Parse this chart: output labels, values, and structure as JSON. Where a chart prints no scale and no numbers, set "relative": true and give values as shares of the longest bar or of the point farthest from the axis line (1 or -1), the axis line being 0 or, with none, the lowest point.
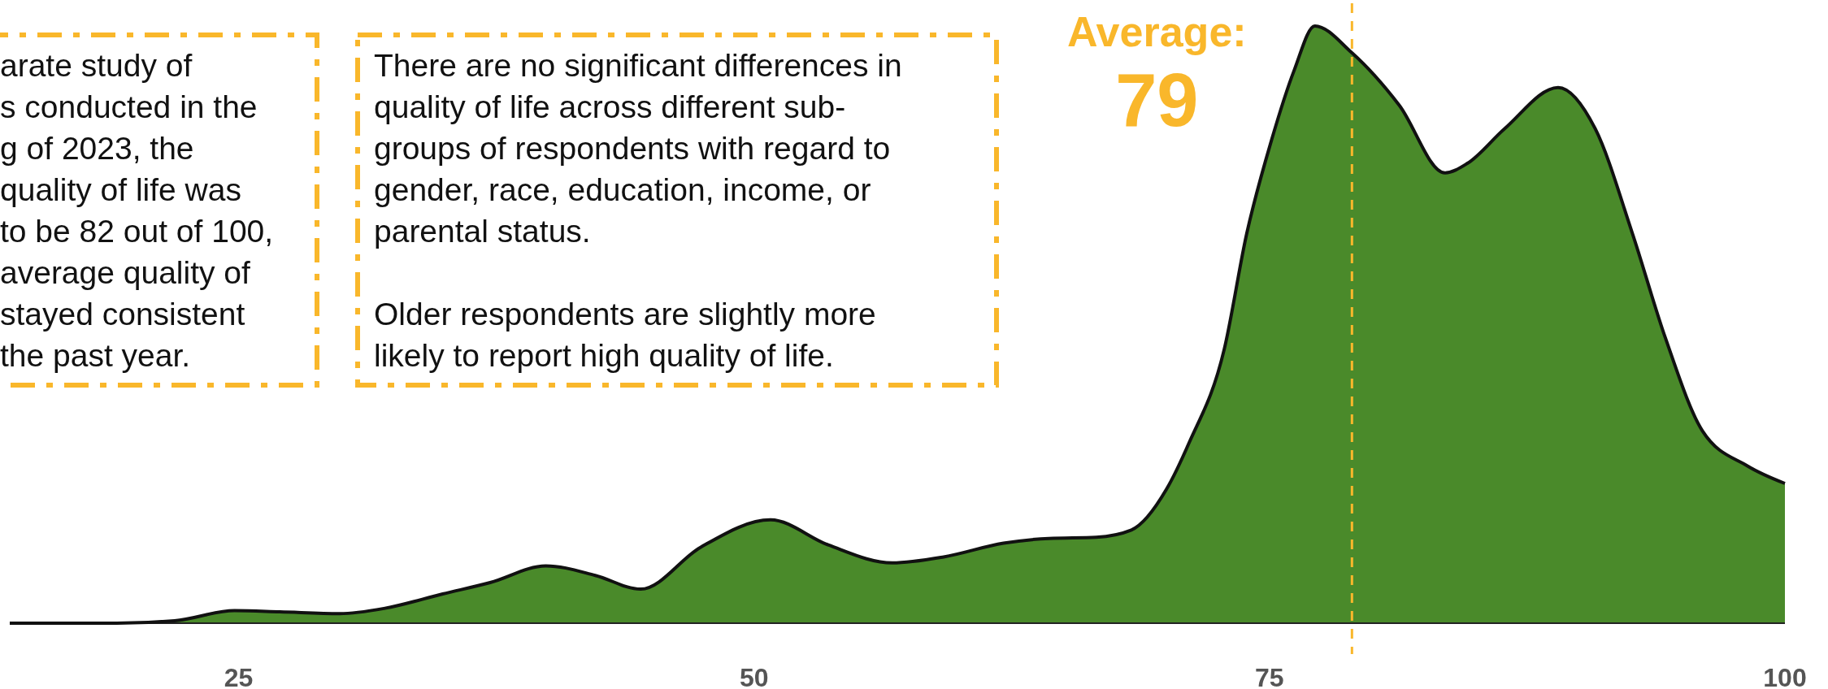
{
  "chart_data": {
    "type": "area",
    "relative": true,
    "color": "#4a8a2a",
    "x": [
      13.9,
      19.1,
      21.9,
      24.8,
      27.0,
      29.9,
      32.1,
      34.9,
      37.2,
      39.9,
      42.3,
      44.5,
      47.4,
      50.8,
      53.6,
      56.7,
      59.2,
      62.1,
      64.3,
      66.6,
      68.3,
      70.0,
      71.1,
      72.8,
      73.9,
      75.1,
      76.2,
      77.2,
      79.0,
      81.3,
      83.5,
      84.6,
      86.4,
      89.0,
      90.8,
      92.6,
      94.2,
      96.0,
      98.2,
      100
    ],
    "values": [
      0.0,
      0.0,
      0.004,
      0.021,
      0.019,
      0.016,
      0.025,
      0.049,
      0.068,
      0.096,
      0.08,
      0.057,
      0.127,
      0.173,
      0.131,
      0.101,
      0.111,
      0.134,
      0.142,
      0.144,
      0.156,
      0.224,
      0.302,
      0.458,
      0.653,
      0.809,
      0.926,
      1.0,
      0.955,
      0.867,
      0.754,
      0.77,
      0.828,
      0.897,
      0.828,
      0.653,
      0.478,
      0.322,
      0.263,
      0.234
    ],
    "xlim": [
      13.9,
      100
    ],
    "xticks": [
      25,
      50,
      75,
      100
    ],
    "ref_lines": [
      {
        "axis": "x",
        "value": 79,
        "label": "Average:\n79",
        "color": "#f9b72b",
        "line_style": "dashed"
      }
    ],
    "annotations": [
      "arate study of\ns conducted in the\ng of 2023, the\nquality of life was\nto be 82 out of 100,\naverage quality of\nstayed consistent\nthe past year.",
      "There are no significant differences in\nquality of life across different sub-\ngroups of respondents with regard to\ngender, race, education, income, or\nparental status.\n\nOlder respondents are slightly more\nlikely to report high quality of life."
    ],
    "grid": false
  }
}
